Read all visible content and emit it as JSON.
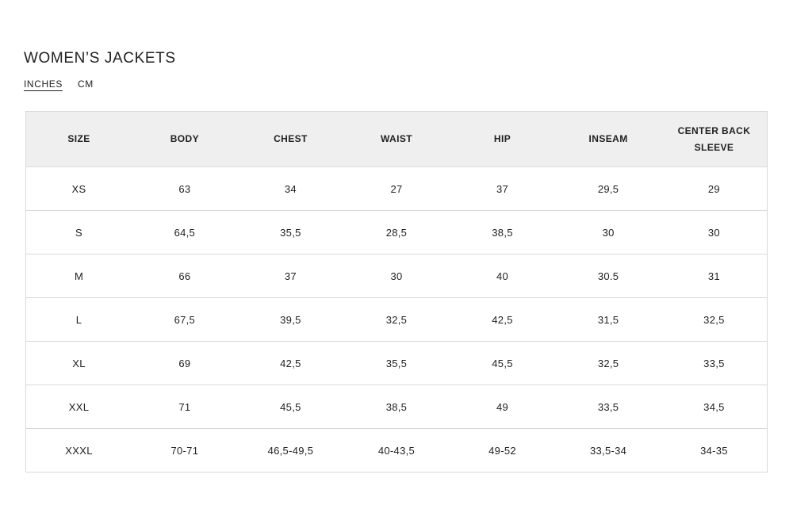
{
  "page": {
    "title": "WOMEN’S JACKETS"
  },
  "units": {
    "tabs": [
      {
        "label": "INCHES",
        "active": true
      },
      {
        "label": "CM",
        "active": false
      }
    ]
  },
  "table": {
    "columns": [
      "SIZE",
      "BODY",
      "CHEST",
      "WAIST",
      "HIP",
      "INSEAM",
      "CENTER BACK SLEEVE"
    ],
    "rows": [
      [
        "XS",
        "63",
        "34",
        "27",
        "37",
        "29,5",
        "29"
      ],
      [
        "S",
        "64,5",
        "35,5",
        "28,5",
        "38,5",
        "30",
        "30"
      ],
      [
        "M",
        "66",
        "37",
        "30",
        "40",
        "30.5",
        "31"
      ],
      [
        "L",
        "67,5",
        "39,5",
        "32,5",
        "42,5",
        "31,5",
        "32,5"
      ],
      [
        "XL",
        "69",
        "42,5",
        "35,5",
        "45,5",
        "32,5",
        "33,5"
      ],
      [
        "XXL",
        "71",
        "45,5",
        "38,5",
        "49",
        "33,5",
        "34,5"
      ],
      [
        "XXXL",
        "70-71",
        "46,5-49,5",
        "40-43,5",
        "49-52",
        "33,5-34",
        "34-35"
      ]
    ]
  },
  "colors": {
    "text": "#212121",
    "header_background": "#efefef",
    "border": "#d9d9d9",
    "page_background": "#ffffff"
  }
}
